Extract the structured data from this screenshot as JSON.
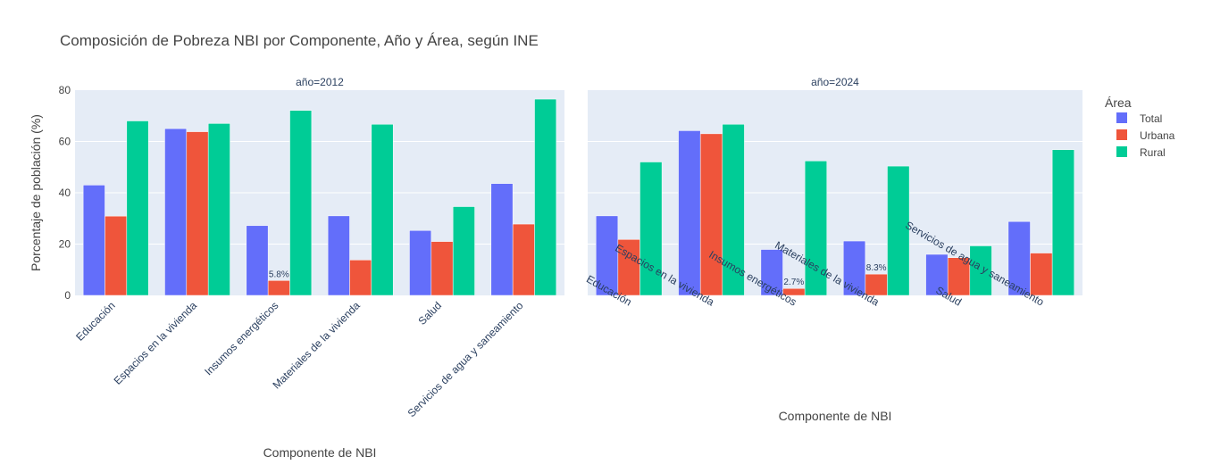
{
  "title": "Composición de Pobreza NBI por Componente, Año y Área, según INE",
  "legend": {
    "title": "Área",
    "placement": "top-right",
    "items": [
      {
        "label": "Total",
        "color": "#636efa"
      },
      {
        "label": "Urbana",
        "color": "#ef553b"
      },
      {
        "label": "Rural",
        "color": "#00cc96"
      }
    ]
  },
  "chart_data": {
    "type": "bar",
    "barmode": "group",
    "ylabel": "Porcentaje de población (%)",
    "ylim": [
      0,
      80
    ],
    "yticks": [
      0,
      20,
      40,
      60,
      80
    ],
    "grid": true,
    "categories": [
      "Educación",
      "Espacios en la vivienda",
      "Insumos energéticos",
      "Materiales de la vivienda",
      "Salud",
      "Servicios de agua y saneamiento"
    ],
    "facets": [
      {
        "label": "año=2012",
        "xlabel": "Componente de NBI",
        "series": [
          {
            "name": "Total",
            "color": "#636efa",
            "values": [
              43.0,
              65.0,
              27.2,
              31.0,
              25.3,
              43.6
            ]
          },
          {
            "name": "Urbana",
            "color": "#ef553b",
            "values": [
              30.9,
              63.8,
              5.8,
              13.8,
              21.0,
              27.8
            ]
          },
          {
            "name": "Rural",
            "color": "#00cc96",
            "values": [
              68.0,
              67.0,
              72.1,
              66.7,
              34.6,
              76.5
            ]
          }
        ],
        "annotations": [
          {
            "category_index": 2,
            "series_index": 1,
            "text": "5.8%"
          }
        ]
      },
      {
        "label": "año=2024",
        "xlabel": "Componente de NBI",
        "series": [
          {
            "name": "Total",
            "color": "#636efa",
            "values": [
              31.0,
              64.2,
              17.9,
              21.2,
              16.0,
              28.8
            ]
          },
          {
            "name": "Urbana",
            "color": "#ef553b",
            "values": [
              21.8,
              63.0,
              2.7,
              8.3,
              14.7,
              16.5
            ]
          },
          {
            "name": "Rural",
            "color": "#00cc96",
            "values": [
              52.0,
              66.7,
              52.4,
              50.4,
              19.3,
              56.8
            ]
          }
        ],
        "annotations": [
          {
            "category_index": 2,
            "series_index": 1,
            "text": "2.7%"
          },
          {
            "category_index": 3,
            "series_index": 1,
            "text": "8.3%"
          }
        ]
      }
    ]
  }
}
